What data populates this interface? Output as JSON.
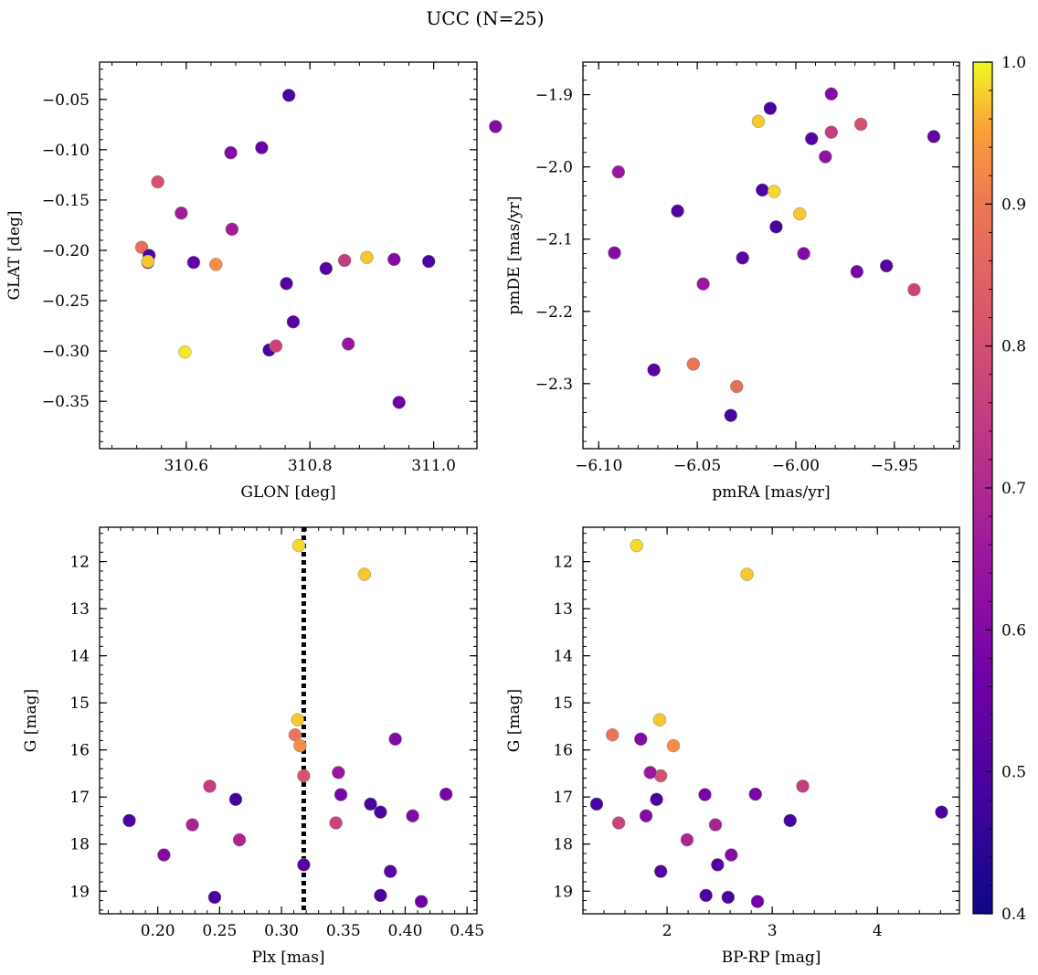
{
  "figure": {
    "title": "UCC (N=25)"
  },
  "colorbar": {
    "min": 0.4,
    "max": 1.0,
    "ticks": [
      "0.4",
      "0.5",
      "0.6",
      "0.7",
      "0.8",
      "0.9",
      "1.0"
    ],
    "colormap": "plasma"
  },
  "chart_data": [
    {
      "type": "scatter",
      "id": "glon-glat",
      "xlabel": "GLON [deg]",
      "ylabel": "GLAT [deg]",
      "xlim": [
        310.46,
        311.07
      ],
      "ylim": [
        -0.397,
        -0.013
      ],
      "y_inverted": false,
      "xticks": [
        310.6,
        310.8,
        311.0
      ],
      "xtick_labels": [
        "310.6",
        "310.8",
        "311.0"
      ],
      "yticks": [
        -0.35,
        -0.3,
        -0.25,
        -0.2,
        -0.15,
        -0.1,
        -0.05
      ],
      "ytick_labels": [
        "−0.35",
        "−0.30",
        "−0.25",
        "−0.20",
        "−0.15",
        "−0.10",
        "−0.05"
      ],
      "points": [
        {
          "x": 310.766,
          "y": -0.046,
          "c": 0.42
        },
        {
          "x": 311.1,
          "y": -0.077,
          "c": 0.55
        },
        {
          "x": 310.722,
          "y": -0.098,
          "c": 0.48
        },
        {
          "x": 310.672,
          "y": -0.103,
          "c": 0.55
        },
        {
          "x": 310.554,
          "y": -0.132,
          "c": 0.78
        },
        {
          "x": 310.592,
          "y": -0.163,
          "c": 0.62
        },
        {
          "x": 310.674,
          "y": -0.179,
          "c": 0.62
        },
        {
          "x": 310.528,
          "y": -0.197,
          "c": 0.86
        },
        {
          "x": 310.54,
          "y": -0.205,
          "c": 0.42
        },
        {
          "x": 310.538,
          "y": -0.212,
          "c": 0.42
        },
        {
          "x": 310.538,
          "y": -0.211,
          "c": 0.97
        },
        {
          "x": 310.612,
          "y": -0.212,
          "c": 0.47
        },
        {
          "x": 310.648,
          "y": -0.214,
          "c": 0.92
        },
        {
          "x": 310.826,
          "y": -0.218,
          "c": 0.45
        },
        {
          "x": 310.856,
          "y": -0.21,
          "c": 0.72
        },
        {
          "x": 310.892,
          "y": -0.207,
          "c": 0.97
        },
        {
          "x": 310.936,
          "y": -0.209,
          "c": 0.55
        },
        {
          "x": 310.992,
          "y": -0.211,
          "c": 0.42
        },
        {
          "x": 310.762,
          "y": -0.233,
          "c": 0.45
        },
        {
          "x": 310.773,
          "y": -0.271,
          "c": 0.46
        },
        {
          "x": 310.734,
          "y": -0.299,
          "c": 0.42
        },
        {
          "x": 310.745,
          "y": -0.295,
          "c": 0.74
        },
        {
          "x": 310.862,
          "y": -0.293,
          "c": 0.6
        },
        {
          "x": 310.598,
          "y": -0.301,
          "c": 0.99
        },
        {
          "x": 310.944,
          "y": -0.351,
          "c": 0.5
        }
      ]
    },
    {
      "type": "scatter",
      "id": "pmra-pmde",
      "xlabel": "pmRA [mas/yr]",
      "ylabel": "pmDE [mas/yr]",
      "xlim": [
        -6.108,
        -5.917
      ],
      "ylim": [
        -2.39,
        -1.855
      ],
      "y_inverted": false,
      "xticks": [
        -6.1,
        -6.05,
        -6.0,
        -5.95
      ],
      "xtick_labels": [
        "−6.10",
        "−6.05",
        "−6.00",
        "−5.95"
      ],
      "yticks": [
        -2.3,
        -2.2,
        -2.1,
        -2.0,
        -1.9
      ],
      "ytick_labels": [
        "−2.3",
        "−2.2",
        "−2.1",
        "−2.0",
        "−1.9"
      ],
      "points": [
        {
          "x": -5.982,
          "y": -1.899,
          "c": 0.55
        },
        {
          "x": -6.013,
          "y": -1.919,
          "c": 0.42
        },
        {
          "x": -6.019,
          "y": -1.937,
          "c": 0.97
        },
        {
          "x": -5.967,
          "y": -1.941,
          "c": 0.78
        },
        {
          "x": -5.982,
          "y": -1.952,
          "c": 0.72
        },
        {
          "x": -5.93,
          "y": -1.958,
          "c": 0.48
        },
        {
          "x": -5.992,
          "y": -1.961,
          "c": 0.45
        },
        {
          "x": -5.985,
          "y": -1.986,
          "c": 0.58
        },
        {
          "x": -6.09,
          "y": -2.007,
          "c": 0.6
        },
        {
          "x": -6.017,
          "y": -2.032,
          "c": 0.42
        },
        {
          "x": -6.011,
          "y": -2.034,
          "c": 0.98
        },
        {
          "x": -5.998,
          "y": -2.065,
          "c": 0.97
        },
        {
          "x": -6.06,
          "y": -2.061,
          "c": 0.45
        },
        {
          "x": -6.01,
          "y": -2.083,
          "c": 0.42
        },
        {
          "x": -6.092,
          "y": -2.119,
          "c": 0.55
        },
        {
          "x": -5.996,
          "y": -2.12,
          "c": 0.55
        },
        {
          "x": -6.027,
          "y": -2.126,
          "c": 0.46
        },
        {
          "x": -5.954,
          "y": -2.137,
          "c": 0.45
        },
        {
          "x": -5.969,
          "y": -2.145,
          "c": 0.52
        },
        {
          "x": -6.047,
          "y": -2.162,
          "c": 0.6
        },
        {
          "x": -5.94,
          "y": -2.17,
          "c": 0.74
        },
        {
          "x": -6.072,
          "y": -2.281,
          "c": 0.46
        },
        {
          "x": -6.052,
          "y": -2.273,
          "c": 0.88
        },
        {
          "x": -6.03,
          "y": -2.304,
          "c": 0.86
        },
        {
          "x": -6.033,
          "y": -2.344,
          "c": 0.42
        }
      ]
    },
    {
      "type": "scatter",
      "id": "plx-g",
      "xlabel": "Plx [mas]",
      "ylabel": "G [mag]",
      "xlim": [
        0.153,
        0.458
      ],
      "ylim": [
        19.48,
        11.27
      ],
      "y_inverted": true,
      "vline": {
        "x": 0.318,
        "style": "dotted"
      },
      "xticks": [
        0.2,
        0.25,
        0.3,
        0.35,
        0.4,
        0.45
      ],
      "xtick_labels": [
        "0.20",
        "0.25",
        "0.30",
        "0.35",
        "0.40",
        "0.45"
      ],
      "yticks": [
        12,
        13,
        14,
        15,
        16,
        17,
        18,
        19
      ],
      "ytick_labels": [
        "12",
        "13",
        "14",
        "15",
        "16",
        "17",
        "18",
        "19"
      ],
      "points": [
        {
          "x": 0.314,
          "y": 11.66,
          "c": 0.98
        },
        {
          "x": 0.367,
          "y": 12.27,
          "c": 0.97
        },
        {
          "x": 0.313,
          "y": 15.36,
          "c": 0.97
        },
        {
          "x": 0.311,
          "y": 15.68,
          "c": 0.88
        },
        {
          "x": 0.315,
          "y": 15.91,
          "c": 0.92
        },
        {
          "x": 0.392,
          "y": 15.77,
          "c": 0.55
        },
        {
          "x": 0.318,
          "y": 16.55,
          "c": 0.78
        },
        {
          "x": 0.346,
          "y": 16.48,
          "c": 0.6
        },
        {
          "x": 0.242,
          "y": 16.77,
          "c": 0.72
        },
        {
          "x": 0.348,
          "y": 16.95,
          "c": 0.52
        },
        {
          "x": 0.433,
          "y": 16.94,
          "c": 0.52
        },
        {
          "x": 0.263,
          "y": 17.05,
          "c": 0.42
        },
        {
          "x": 0.372,
          "y": 17.15,
          "c": 0.42
        },
        {
          "x": 0.38,
          "y": 17.32,
          "c": 0.42
        },
        {
          "x": 0.406,
          "y": 17.4,
          "c": 0.55
        },
        {
          "x": 0.177,
          "y": 17.5,
          "c": 0.42
        },
        {
          "x": 0.344,
          "y": 17.55,
          "c": 0.74
        },
        {
          "x": 0.228,
          "y": 17.59,
          "c": 0.64
        },
        {
          "x": 0.266,
          "y": 17.91,
          "c": 0.65
        },
        {
          "x": 0.205,
          "y": 18.23,
          "c": 0.55
        },
        {
          "x": 0.318,
          "y": 18.44,
          "c": 0.45
        },
        {
          "x": 0.388,
          "y": 18.58,
          "c": 0.45
        },
        {
          "x": 0.38,
          "y": 19.09,
          "c": 0.42
        },
        {
          "x": 0.246,
          "y": 19.13,
          "c": 0.42
        },
        {
          "x": 0.413,
          "y": 19.22,
          "c": 0.5
        }
      ]
    },
    {
      "type": "scatter",
      "id": "bprp-g",
      "xlabel": "BP-RP [mag]",
      "ylabel": "G [mag]",
      "xlim": [
        1.2,
        4.78
      ],
      "ylim": [
        19.48,
        11.27
      ],
      "y_inverted": true,
      "xticks": [
        2,
        3,
        4
      ],
      "xtick_labels": [
        "2",
        "3",
        "4"
      ],
      "yticks": [
        12,
        13,
        14,
        15,
        16,
        17,
        18,
        19
      ],
      "ytick_labels": [
        "12",
        "13",
        "14",
        "15",
        "16",
        "17",
        "18",
        "19"
      ],
      "points": [
        {
          "x": 1.71,
          "y": 11.66,
          "c": 0.98
        },
        {
          "x": 2.76,
          "y": 12.27,
          "c": 0.97
        },
        {
          "x": 1.93,
          "y": 15.36,
          "c": 0.97
        },
        {
          "x": 1.48,
          "y": 15.68,
          "c": 0.88
        },
        {
          "x": 2.06,
          "y": 15.91,
          "c": 0.92
        },
        {
          "x": 1.75,
          "y": 15.77,
          "c": 0.55
        },
        {
          "x": 1.94,
          "y": 16.55,
          "c": 0.78
        },
        {
          "x": 1.84,
          "y": 16.48,
          "c": 0.6
        },
        {
          "x": 3.29,
          "y": 16.77,
          "c": 0.72
        },
        {
          "x": 2.36,
          "y": 16.95,
          "c": 0.52
        },
        {
          "x": 2.84,
          "y": 16.94,
          "c": 0.52
        },
        {
          "x": 1.9,
          "y": 17.05,
          "c": 0.42
        },
        {
          "x": 1.33,
          "y": 17.15,
          "c": 0.42
        },
        {
          "x": 4.61,
          "y": 17.32,
          "c": 0.42
        },
        {
          "x": 1.8,
          "y": 17.4,
          "c": 0.55
        },
        {
          "x": 3.17,
          "y": 17.5,
          "c": 0.42
        },
        {
          "x": 1.54,
          "y": 17.55,
          "c": 0.74
        },
        {
          "x": 2.46,
          "y": 17.59,
          "c": 0.64
        },
        {
          "x": 2.19,
          "y": 17.91,
          "c": 0.65
        },
        {
          "x": 2.61,
          "y": 18.23,
          "c": 0.55
        },
        {
          "x": 2.48,
          "y": 18.44,
          "c": 0.45
        },
        {
          "x": 1.94,
          "y": 18.58,
          "c": 0.45
        },
        {
          "x": 2.37,
          "y": 19.09,
          "c": 0.42
        },
        {
          "x": 2.58,
          "y": 19.13,
          "c": 0.42
        },
        {
          "x": 2.86,
          "y": 19.22,
          "c": 0.5
        }
      ]
    }
  ]
}
